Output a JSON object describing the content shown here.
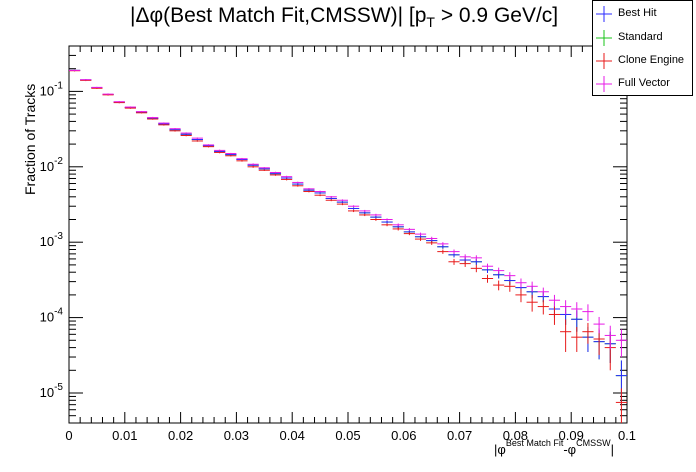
{
  "chart_data": {
    "type": "scatter",
    "title_main": "|Δφ(Best Match Fit,CMSSW)| [p",
    "title_sub": "T",
    "title_tail": " > 0.9 GeV/c]",
    "ylabel": "Fraction of Tracks",
    "xlabel_parts": [
      "|φ",
      "Best Match Fit",
      "-φ",
      "CMSSW",
      "|"
    ],
    "x_range": [
      0,
      0.1
    ],
    "y_range": [
      4e-06,
      0.4
    ],
    "y_scale": "log",
    "x_ticks": [
      "0",
      "0.01",
      "0.02",
      "0.03",
      "0.04",
      "0.05",
      "0.06",
      "0.07",
      "0.08",
      "0.09",
      "0.1"
    ],
    "y_ticks": [
      {
        "base": "10",
        "exp": "-5",
        "value": 1e-05
      },
      {
        "base": "10",
        "exp": "-4",
        "value": 0.0001
      },
      {
        "base": "10",
        "exp": "-3",
        "value": 0.001
      },
      {
        "base": "10",
        "exp": "-2",
        "value": 0.01
      },
      {
        "base": "10",
        "exp": "-1",
        "value": 0.1
      }
    ],
    "bin_width": 0.002,
    "x": [
      0.001,
      0.003,
      0.005,
      0.007,
      0.009,
      0.011,
      0.013,
      0.015,
      0.017,
      0.019,
      0.021,
      0.023,
      0.025,
      0.027,
      0.029,
      0.031,
      0.033,
      0.035,
      0.037,
      0.039,
      0.041,
      0.043,
      0.045,
      0.047,
      0.049,
      0.051,
      0.053,
      0.055,
      0.057,
      0.059,
      0.061,
      0.063,
      0.065,
      0.067,
      0.069,
      0.071,
      0.073,
      0.075,
      0.077,
      0.079,
      0.081,
      0.083,
      0.085,
      0.087,
      0.089,
      0.091,
      0.093,
      0.095,
      0.097,
      0.099
    ],
    "legend_position": "top-right",
    "series": [
      {
        "name": "Best Hit",
        "color": "#2a2aff",
        "values": [
          0.19,
          0.142,
          0.112,
          0.091,
          0.072,
          0.061,
          0.053,
          0.044,
          0.037,
          0.031,
          0.027,
          0.023,
          0.019,
          0.016,
          0.0145,
          0.0125,
          0.0105,
          0.0094,
          0.0081,
          0.0071,
          0.0059,
          0.0049,
          0.0045,
          0.0038,
          0.0034,
          0.0028,
          0.00245,
          0.00215,
          0.00185,
          0.0016,
          0.00137,
          0.00118,
          0.00105,
          0.00087,
          0.00068,
          0.00058,
          0.00055,
          0.00043,
          0.00037,
          0.00031,
          0.00025,
          0.00022,
          0.00019,
          0.00013,
          0.00011,
          9.5e-05,
          5.5e-05,
          4.8e-05,
          4.5e-05,
          1.7e-05
        ],
        "err": [
          0.004,
          0.003,
          0.002,
          0.002,
          0.0015,
          0.0012,
          0.001,
          0.0009,
          0.0008,
          0.0007,
          0.0006,
          0.0005,
          0.0004,
          0.0004,
          0.0003,
          0.0003,
          0.0003,
          0.0002,
          0.0002,
          0.0002,
          0.00015,
          0.00012,
          0.00012,
          0.0001,
          0.0001,
          9e-05,
          8e-05,
          8e-05,
          7e-05,
          7e-05,
          6e-05,
          6e-05,
          6e-05,
          5e-05,
          5e-05,
          5e-05,
          5e-05,
          4e-05,
          4e-05,
          4e-05,
          4e-05,
          4e-05,
          3e-05,
          3e-05,
          3e-05,
          3e-05,
          2e-05,
          2e-05,
          2e-05,
          1e-05
        ]
      },
      {
        "name": "Standard",
        "color": "#18c418",
        "values": [
          0.19,
          0.142,
          0.112,
          0.091,
          0.072,
          0.061,
          0.053,
          0.044,
          0.037,
          0.031,
          0.027,
          0.023,
          0.019,
          0.016,
          0.0145,
          0.0125,
          0.0105,
          0.0094,
          0.0081,
          0.0071,
          0.0059,
          0.0049,
          0.0045,
          0.0038,
          0.0034,
          0.0028,
          0.00245,
          0.00215,
          0.00185,
          0.0016,
          0.00137,
          0.00118,
          0.00105,
          0.00087,
          0.00068,
          0.00058,
          0.00055,
          0.00043,
          0.00037,
          0.00031,
          0.00025,
          0.00022,
          0.00019,
          0.00013,
          0.00011,
          9.5e-05,
          5.5e-05,
          4.8e-05,
          4.5e-05,
          1.7e-05
        ],
        "err": [
          0.004,
          0.003,
          0.002,
          0.002,
          0.0015,
          0.0012,
          0.001,
          0.0009,
          0.0008,
          0.0007,
          0.0006,
          0.0005,
          0.0004,
          0.0004,
          0.0003,
          0.0003,
          0.0003,
          0.0002,
          0.0002,
          0.0002,
          0.00015,
          0.00012,
          0.00012,
          0.0001,
          0.0001,
          9e-05,
          8e-05,
          8e-05,
          7e-05,
          7e-05,
          6e-05,
          6e-05,
          6e-05,
          5e-05,
          5e-05,
          5e-05,
          5e-05,
          4e-05,
          4e-05,
          4e-05,
          4e-05,
          4e-05,
          3e-05,
          3e-05,
          3e-05,
          3e-05,
          2e-05,
          2e-05,
          2e-05,
          1e-05
        ]
      },
      {
        "name": "Clone Engine",
        "color": "#e81a1a",
        "values": [
          0.188,
          0.14,
          0.11,
          0.09,
          0.071,
          0.06,
          0.052,
          0.043,
          0.036,
          0.03,
          0.026,
          0.022,
          0.0185,
          0.0155,
          0.014,
          0.012,
          0.01,
          0.009,
          0.0078,
          0.0068,
          0.0056,
          0.0047,
          0.0042,
          0.0036,
          0.0032,
          0.0026,
          0.0023,
          0.002,
          0.0017,
          0.0015,
          0.0013,
          0.0011,
          0.00098,
          0.00075,
          0.00055,
          0.00052,
          0.00045,
          0.00033,
          0.00027,
          0.00026,
          0.0002,
          0.00016,
          0.00014,
          0.00011,
          6.5e-05,
          5.5e-05,
          6.5e-05,
          5.2e-05,
          4e-05,
          7.5e-06
        ],
        "err": [
          0.004,
          0.003,
          0.002,
          0.002,
          0.0015,
          0.0012,
          0.001,
          0.0009,
          0.0008,
          0.0007,
          0.0006,
          0.0005,
          0.0004,
          0.0004,
          0.0003,
          0.0003,
          0.0003,
          0.0002,
          0.0002,
          0.0002,
          0.00015,
          0.00012,
          0.00012,
          0.0001,
          0.0001,
          9e-05,
          8e-05,
          8e-05,
          7e-05,
          7e-05,
          6e-05,
          6e-05,
          6e-05,
          5e-05,
          5e-05,
          5e-05,
          5e-05,
          4e-05,
          4e-05,
          4e-05,
          4e-05,
          4e-05,
          3e-05,
          3e-05,
          3e-05,
          2e-05,
          2e-05,
          2e-05,
          2e-05,
          4e-06
        ]
      },
      {
        "name": "Full Vector",
        "color": "#e71ae7",
        "values": [
          0.19,
          0.143,
          0.113,
          0.092,
          0.073,
          0.062,
          0.054,
          0.045,
          0.038,
          0.032,
          0.028,
          0.024,
          0.0195,
          0.0165,
          0.015,
          0.0128,
          0.0108,
          0.0097,
          0.0084,
          0.0074,
          0.0062,
          0.0051,
          0.0047,
          0.004,
          0.0036,
          0.003,
          0.0026,
          0.0023,
          0.002,
          0.0017,
          0.00148,
          0.00128,
          0.00112,
          0.00095,
          0.00075,
          0.00064,
          0.00062,
          0.00048,
          0.00042,
          0.00036,
          0.00029,
          0.00026,
          0.00022,
          0.00017,
          0.00014,
          0.00013,
          0.00012,
          8.2e-05,
          5.8e-05,
          5e-05
        ],
        "err": [
          0.004,
          0.003,
          0.002,
          0.002,
          0.0015,
          0.0012,
          0.001,
          0.0009,
          0.0008,
          0.0007,
          0.0006,
          0.0005,
          0.0004,
          0.0004,
          0.0003,
          0.0003,
          0.0003,
          0.0002,
          0.0002,
          0.0002,
          0.00015,
          0.00012,
          0.00012,
          0.0001,
          0.0001,
          9e-05,
          8e-05,
          8e-05,
          7e-05,
          7e-05,
          6e-05,
          6e-05,
          6e-05,
          5e-05,
          5e-05,
          5e-05,
          5e-05,
          4e-05,
          4e-05,
          4e-05,
          4e-05,
          4e-05,
          3e-05,
          3e-05,
          3e-05,
          3e-05,
          3e-05,
          2e-05,
          2e-05,
          2e-05
        ]
      }
    ]
  }
}
